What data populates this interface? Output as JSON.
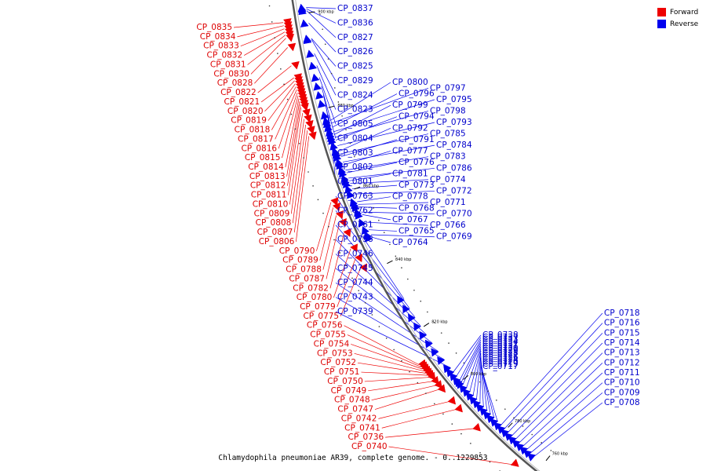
{
  "caption": "Chlamydophila pneumoniae AR39, complete genome. - 0..1229853",
  "legend": [
    {
      "label": "Forward",
      "color": "#ee0000"
    },
    {
      "label": "Reverse",
      "color": "#0000ee"
    }
  ],
  "ticks": [
    {
      "label": "900 kbp",
      "t": 0.03
    },
    {
      "label": "880 kbp",
      "t": 0.19
    },
    {
      "label": "860 kbp",
      "t": 0.34
    },
    {
      "label": "840 kbp",
      "t": 0.49
    },
    {
      "label": "820 kbp",
      "t": 0.63
    },
    {
      "label": "800 kbp",
      "t": 0.76
    },
    {
      "label": "780 kbp",
      "t": 0.89
    },
    {
      "label": "760 kbp",
      "t": 0.99
    }
  ],
  "reverse_genes": [
    {
      "id": "CP_0837",
      "t": 0.02,
      "col": 0
    },
    {
      "id": "CP_0836",
      "t": 0.022,
      "col": 0
    },
    {
      "id": "CP_0827",
      "t": 0.025,
      "col": 0
    },
    {
      "id": "CP_0826",
      "t": 0.045,
      "col": 0
    },
    {
      "id": "CP_0825",
      "t": 0.07,
      "col": 0
    },
    {
      "id": "CP_0829",
      "t": 0.072,
      "col": 0
    },
    {
      "id": "CP_0824",
      "t": 0.095,
      "col": 0
    },
    {
      "id": "CP_0823",
      "t": 0.115,
      "col": 0
    },
    {
      "id": "CP_0805",
      "t": 0.135,
      "col": 0
    },
    {
      "id": "CP_0804",
      "t": 0.15,
      "col": 0
    },
    {
      "id": "CP_0803",
      "t": 0.165,
      "col": 0
    },
    {
      "id": "CP_0802",
      "t": 0.18,
      "col": 0
    },
    {
      "id": "CP_0801",
      "t": 0.2,
      "col": 0
    },
    {
      "id": "CP_0800",
      "t": 0.21,
      "col": 1
    },
    {
      "id": "CP_0797",
      "t": 0.215,
      "col": 1
    },
    {
      "id": "CP_0796",
      "t": 0.222,
      "col": 1
    },
    {
      "id": "CP_0795",
      "t": 0.23,
      "col": 1
    },
    {
      "id": "CP_0799",
      "t": 0.235,
      "col": 1
    },
    {
      "id": "CP_0798",
      "t": 0.24,
      "col": 1
    },
    {
      "id": "CP_0794",
      "t": 0.245,
      "col": 1
    },
    {
      "id": "CP_0793",
      "t": 0.255,
      "col": 1
    },
    {
      "id": "CP_0792",
      "t": 0.265,
      "col": 1
    },
    {
      "id": "CP_0785",
      "t": 0.27,
      "col": 1
    },
    {
      "id": "CP_0791",
      "t": 0.275,
      "col": 1
    },
    {
      "id": "CP_0784",
      "t": 0.285,
      "col": 1
    },
    {
      "id": "CP_0777",
      "t": 0.29,
      "col": 1
    },
    {
      "id": "CP_0783",
      "t": 0.3,
      "col": 1
    },
    {
      "id": "CP_0776",
      "t": 0.305,
      "col": 1
    },
    {
      "id": "CP_0786",
      "t": 0.315,
      "col": 1
    },
    {
      "id": "CP_0781",
      "t": 0.32,
      "col": 1
    },
    {
      "id": "CP_0774",
      "t": 0.325,
      "col": 1
    },
    {
      "id": "CP_0773",
      "t": 0.335,
      "col": 1
    },
    {
      "id": "CP_0772",
      "t": 0.345,
      "col": 1
    },
    {
      "id": "CP_0778",
      "t": 0.36,
      "col": 1
    },
    {
      "id": "CP_0771",
      "t": 0.365,
      "col": 1
    },
    {
      "id": "CP_0768",
      "t": 0.37,
      "col": 1
    },
    {
      "id": "CP_0770",
      "t": 0.38,
      "col": 1
    },
    {
      "id": "CP_0767",
      "t": 0.385,
      "col": 1
    },
    {
      "id": "CP_0766",
      "t": 0.4,
      "col": 1
    },
    {
      "id": "CP_0765",
      "t": 0.415,
      "col": 1
    },
    {
      "id": "CP_0769",
      "t": 0.425,
      "col": 1
    },
    {
      "id": "CP_0764",
      "t": 0.43,
      "col": 1
    },
    {
      "id": "CP_0763",
      "t": 0.56,
      "col": 0
    },
    {
      "id": "CP_0762",
      "t": 0.58,
      "col": 0
    },
    {
      "id": "CP_0761",
      "t": 0.6,
      "col": 0
    },
    {
      "id": "CP_0758",
      "t": 0.62,
      "col": 0
    },
    {
      "id": "CP_0746",
      "t": 0.64,
      "col": 0
    },
    {
      "id": "CP_0745",
      "t": 0.66,
      "col": 0
    },
    {
      "id": "CP_0744",
      "t": 0.68,
      "col": 0
    },
    {
      "id": "CP_0743",
      "t": 0.7,
      "col": 0
    },
    {
      "id": "CP_0739",
      "t": 0.72,
      "col": 0
    },
    {
      "id": "CP_0738",
      "t": 0.73,
      "col": 2
    },
    {
      "id": "CP_0737",
      "t": 0.74,
      "col": 2
    },
    {
      "id": "CP_0733",
      "t": 0.75,
      "col": 2
    },
    {
      "id": "CP_0734",
      "t": 0.755,
      "col": 2
    },
    {
      "id": "CP_0732",
      "t": 0.76,
      "col": 2
    },
    {
      "id": "CP_0731",
      "t": 0.77,
      "col": 2
    },
    {
      "id": "CP_0730",
      "t": 0.78,
      "col": 2
    },
    {
      "id": "CP_0729",
      "t": 0.79,
      "col": 2
    },
    {
      "id": "CP_0728",
      "t": 0.8,
      "col": 2
    },
    {
      "id": "CP_0727",
      "t": 0.81,
      "col": 2
    },
    {
      "id": "CP_0726",
      "t": 0.82,
      "col": 2
    },
    {
      "id": "CP_0724",
      "t": 0.83,
      "col": 2
    },
    {
      "id": "CP_0720",
      "t": 0.84,
      "col": 2
    },
    {
      "id": "CP_0719",
      "t": 0.85,
      "col": 2
    },
    {
      "id": "CP_0717",
      "t": 0.86,
      "col": 2
    },
    {
      "id": "CP_0718",
      "t": 0.87,
      "col": 3
    },
    {
      "id": "CP_0716",
      "t": 0.88,
      "col": 3
    },
    {
      "id": "CP_0715",
      "t": 0.89,
      "col": 3
    },
    {
      "id": "CP_0714",
      "t": 0.9,
      "col": 3
    },
    {
      "id": "CP_0713",
      "t": 0.91,
      "col": 3
    },
    {
      "id": "CP_0712",
      "t": 0.92,
      "col": 3
    },
    {
      "id": "CP_0711",
      "t": 0.93,
      "col": 3
    },
    {
      "id": "CP_0710",
      "t": 0.94,
      "col": 3
    },
    {
      "id": "CP_0709",
      "t": 0.95,
      "col": 3
    },
    {
      "id": "CP_0708",
      "t": 0.96,
      "col": 3
    }
  ],
  "forward_genes": [
    {
      "id": "CP_0835",
      "t": 0.04
    },
    {
      "id": "CP_0834",
      "t": 0.045
    },
    {
      "id": "CP_0833",
      "t": 0.05
    },
    {
      "id": "CP_0832",
      "t": 0.055
    },
    {
      "id": "CP_0831",
      "t": 0.06
    },
    {
      "id": "CP_0830",
      "t": 0.065
    },
    {
      "id": "CP_0828",
      "t": 0.08
    },
    {
      "id": "CP_0822",
      "t": 0.11
    },
    {
      "id": "CP_0821",
      "t": 0.13
    },
    {
      "id": "CP_0820",
      "t": 0.135
    },
    {
      "id": "CP_0819",
      "t": 0.14
    },
    {
      "id": "CP_0818",
      "t": 0.145
    },
    {
      "id": "CP_0817",
      "t": 0.15
    },
    {
      "id": "CP_0816",
      "t": 0.155
    },
    {
      "id": "CP_0815",
      "t": 0.16
    },
    {
      "id": "CP_0814",
      "t": 0.165
    },
    {
      "id": "CP_0813",
      "t": 0.17
    },
    {
      "id": "CP_0812",
      "t": 0.175
    },
    {
      "id": "CP_0811",
      "t": 0.18
    },
    {
      "id": "CP_0810",
      "t": 0.19
    },
    {
      "id": "CP_0809",
      "t": 0.2
    },
    {
      "id": "CP_0808",
      "t": 0.21
    },
    {
      "id": "CP_0807",
      "t": 0.22
    },
    {
      "id": "CP_0806",
      "t": 0.23
    },
    {
      "id": "CP_0790",
      "t": 0.35
    },
    {
      "id": "CP_0789",
      "t": 0.36
    },
    {
      "id": "CP_0788",
      "t": 0.375
    },
    {
      "id": "CP_0787",
      "t": 0.39
    },
    {
      "id": "CP_0782",
      "t": 0.41
    },
    {
      "id": "CP_0780",
      "t": 0.44
    },
    {
      "id": "CP_0779",
      "t": 0.46
    },
    {
      "id": "CP_0775",
      "t": 0.48
    },
    {
      "id": "CP_0756",
      "t": 0.69
    },
    {
      "id": "CP_0755",
      "t": 0.695
    },
    {
      "id": "CP_0754",
      "t": 0.7
    },
    {
      "id": "CP_0753",
      "t": 0.705
    },
    {
      "id": "CP_0752",
      "t": 0.71
    },
    {
      "id": "CP_0751",
      "t": 0.715
    },
    {
      "id": "CP_0750",
      "t": 0.72
    },
    {
      "id": "CP_0749",
      "t": 0.73
    },
    {
      "id": "CP_0748",
      "t": 0.74
    },
    {
      "id": "CP_0747",
      "t": 0.75
    },
    {
      "id": "CP_0742",
      "t": 0.78
    },
    {
      "id": "CP_0741",
      "t": 0.8
    },
    {
      "id": "CP_0736",
      "t": 0.85
    },
    {
      "id": "CP_0740",
      "t": 0.95
    }
  ]
}
